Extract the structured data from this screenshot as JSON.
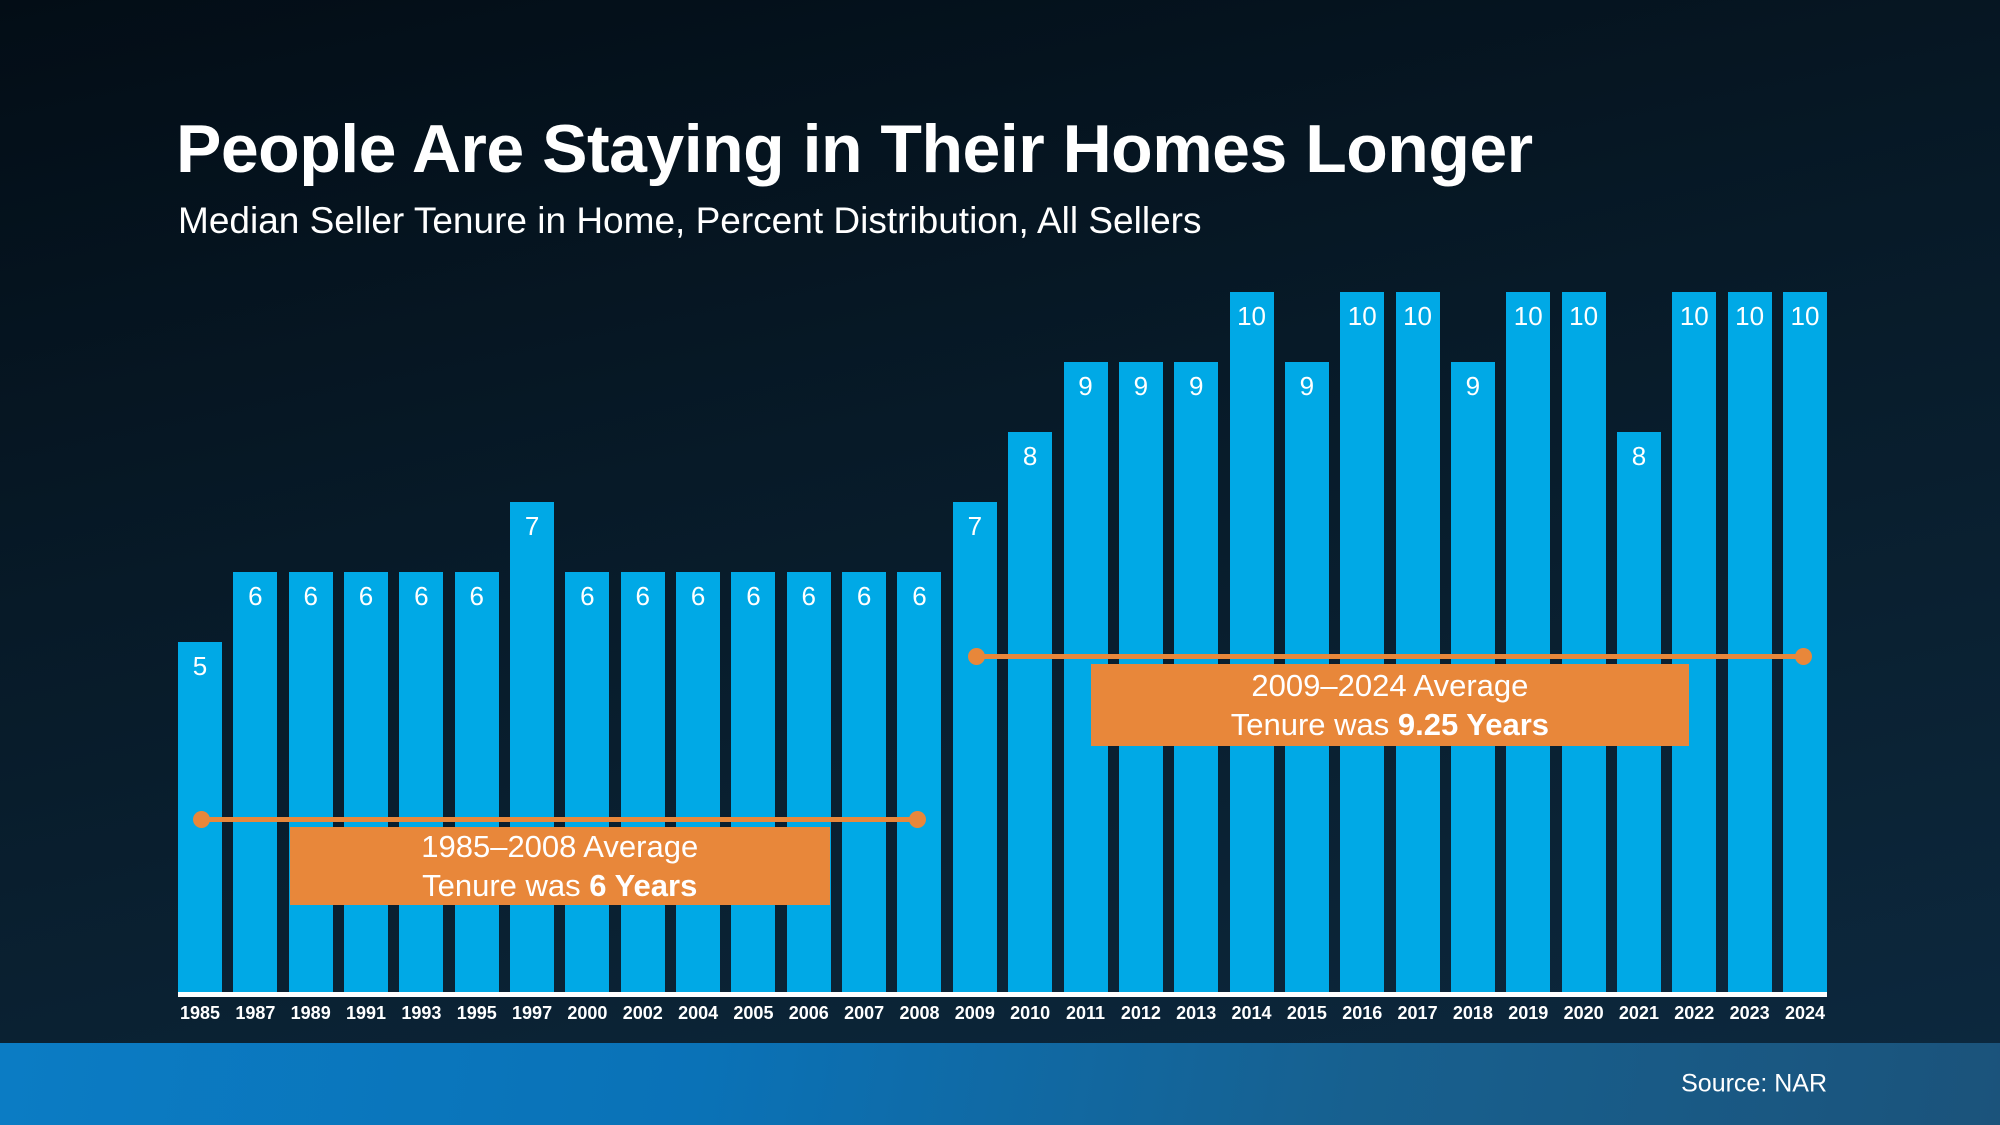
{
  "header": {
    "title": "People Are Staying in Their Homes Longer",
    "subtitle": "Median Seller Tenure in Home, Percent Distribution, All Sellers"
  },
  "chart_data": {
    "type": "bar",
    "title": "People Are Staying in Their Homes Longer",
    "subtitle": "Median Seller Tenure in Home, Percent Distribution, All Sellers",
    "categories": [
      "1985",
      "1987",
      "1989",
      "1991",
      "1993",
      "1995",
      "1997",
      "2000",
      "2002",
      "2004",
      "2005",
      "2006",
      "2007",
      "2008",
      "2009",
      "2010",
      "2011",
      "2012",
      "2013",
      "2014",
      "2015",
      "2016",
      "2017",
      "2018",
      "2019",
      "2020",
      "2021",
      "2022",
      "2023",
      "2024"
    ],
    "values": [
      5,
      6,
      6,
      6,
      6,
      6,
      7,
      6,
      6,
      6,
      6,
      6,
      6,
      6,
      7,
      8,
      9,
      9,
      9,
      10,
      9,
      10,
      10,
      9,
      10,
      10,
      8,
      10,
      10,
      10
    ],
    "xlabel": "",
    "ylabel": "",
    "ylim": [
      0,
      10
    ],
    "grid": false,
    "legend": "none",
    "value_labels": "inside-top",
    "bar_color": "#00a9e6",
    "annotations": [
      {
        "start_year": "1985",
        "end_year": "2008",
        "title": "1985–2008 Average",
        "body_prefix": "Tenure was ",
        "body_bold": "6 Years",
        "average_value": 6
      },
      {
        "start_year": "2009",
        "end_year": "2024",
        "title": "2009–2024 Average",
        "body_prefix": "Tenure was ",
        "body_bold": "9.25 Years",
        "average_value": 9.25
      }
    ]
  },
  "footer": {
    "source": "Source: NAR"
  },
  "colors": {
    "bar_blue": "#00a9e6",
    "accent_orange": "#e8873a",
    "background_top": "#030d16",
    "background_bottom": "#0c2940",
    "footer_band_left": "#0b7cc4",
    "footer_band_right": "#1b537b",
    "text": "#ffffff"
  }
}
